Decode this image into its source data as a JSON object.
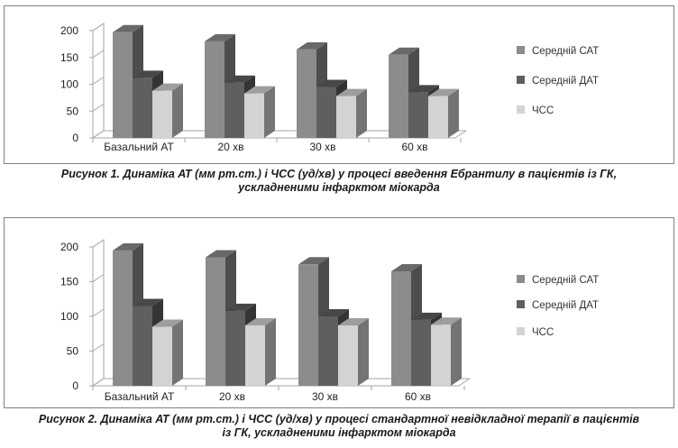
{
  "figures": [
    {
      "caption_line1": "Рисунок 1. Динаміка АТ (мм рт.ст.) і ЧСС (уд/хв) у процесі введення Ебрантилу в пацієнтів із ГК,",
      "caption_line2": "ускладненими інфарктом міокарда"
    },
    {
      "caption_line1": "Рисунок 2. Динаміка АТ (мм рт.ст.) і ЧСС (уд/хв) у процесі стандартної невідкладної терапії в пацієнтів",
      "caption_line2": "із ГК, ускладненими інфарктом міокарда"
    }
  ],
  "chart_data": [
    {
      "type": "bar",
      "style": "3d-clustered-column",
      "categories": [
        "Базальний АТ",
        "20 хв",
        "30 хв",
        "60 хв"
      ],
      "series": [
        {
          "name": "Середній САТ",
          "color": "#8c8c8c",
          "values": [
            197,
            180,
            165,
            155
          ]
        },
        {
          "name": "Середній ДАТ",
          "color": "#5f5f5f",
          "values": [
            112,
            103,
            95,
            85
          ]
        },
        {
          "name": "ЧСС",
          "color": "#d3d3d3",
          "values": [
            88,
            83,
            78,
            78
          ]
        }
      ],
      "yticks": [
        0,
        50,
        100,
        150,
        200
      ],
      "ylim": [
        0,
        200
      ],
      "grid": false,
      "legend_position": "right"
    },
    {
      "type": "bar",
      "style": "3d-clustered-column",
      "categories": [
        "Базальний АТ",
        "20 хв",
        "30 хв",
        "60 хв"
      ],
      "series": [
        {
          "name": "Середній САТ",
          "color": "#8c8c8c",
          "values": [
            195,
            185,
            175,
            165
          ]
        },
        {
          "name": "Середній ДАТ",
          "color": "#5f5f5f",
          "values": [
            115,
            108,
            100,
            95
          ]
        },
        {
          "name": "ЧСС",
          "color": "#d3d3d3",
          "values": [
            85,
            87,
            87,
            88
          ]
        }
      ],
      "yticks": [
        0,
        50,
        100,
        150,
        200
      ],
      "ylim": [
        0,
        200
      ],
      "grid": false,
      "legend_position": "right"
    }
  ]
}
